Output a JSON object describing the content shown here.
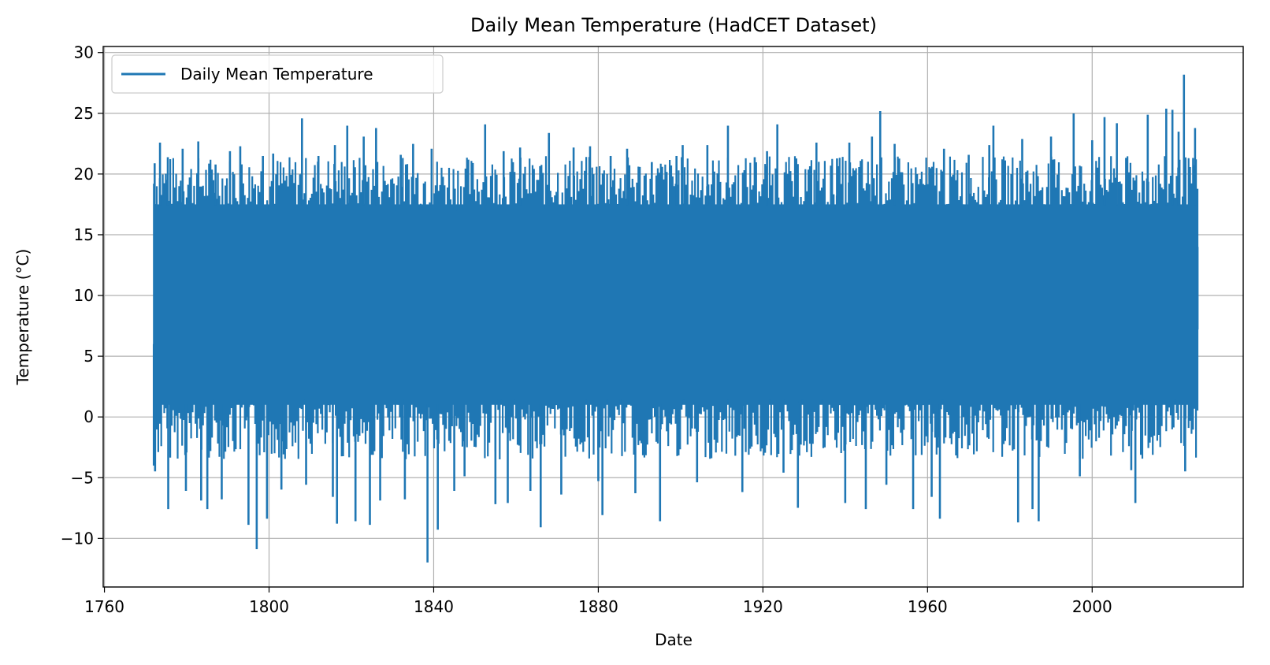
{
  "chart_data": {
    "type": "line",
    "title": "Daily Mean Temperature (HadCET Dataset)",
    "xlabel": "Date",
    "ylabel": "Temperature (°C)",
    "xlim": [
      1759.7,
      2036.7
    ],
    "ylim": [
      -14.0,
      30.5
    ],
    "x_ticks": [
      1760,
      1800,
      1840,
      1880,
      1920,
      1960,
      2000
    ],
    "x_tick_labels": [
      "1760",
      "1800",
      "1840",
      "1880",
      "1920",
      "1960",
      "2000"
    ],
    "y_ticks": [
      -10,
      -5,
      0,
      5,
      10,
      15,
      20,
      25,
      30
    ],
    "y_tick_labels": [
      "−10",
      "−5",
      "0",
      "5",
      "10",
      "15",
      "20",
      "25",
      "30"
    ],
    "grid": true,
    "legend_position": "top-left",
    "series": [
      {
        "name": "Daily Mean Temperature",
        "color": "#1f77b4",
        "x_range": [
          1772.0,
          2025.6
        ],
        "core_range": [
          1.0,
          17.5
        ],
        "points": [
          {
            "x": 1772.2,
            "y": 20.8
          },
          {
            "x": 1772.3,
            "y": -4.4
          },
          {
            "x": 1773.5,
            "y": 22.5
          },
          {
            "x": 1775.4,
            "y": 21.3
          },
          {
            "x": 1775.5,
            "y": -7.5
          },
          {
            "x": 1779.0,
            "y": 22.0
          },
          {
            "x": 1779.8,
            "y": -6.0
          },
          {
            "x": 1782.8,
            "y": 22.6
          },
          {
            "x": 1783.5,
            "y": -6.8
          },
          {
            "x": 1785.0,
            "y": -7.5
          },
          {
            "x": 1787.0,
            "y": 20.7
          },
          {
            "x": 1788.5,
            "y": -6.7
          },
          {
            "x": 1790.5,
            "y": 21.8
          },
          {
            "x": 1793.0,
            "y": 22.2
          },
          {
            "x": 1795.0,
            "y": -8.8
          },
          {
            "x": 1797.0,
            "y": -10.8
          },
          {
            "x": 1798.5,
            "y": 21.4
          },
          {
            "x": 1799.5,
            "y": -8.3
          },
          {
            "x": 1801.0,
            "y": 21.6
          },
          {
            "x": 1803.0,
            "y": -5.9
          },
          {
            "x": 1808.0,
            "y": 24.5
          },
          {
            "x": 1809.0,
            "y": -5.5
          },
          {
            "x": 1812.0,
            "y": 21.4
          },
          {
            "x": 1815.5,
            "y": -6.5
          },
          {
            "x": 1816.0,
            "y": 22.3
          },
          {
            "x": 1816.5,
            "y": -8.7
          },
          {
            "x": 1819.0,
            "y": 23.9
          },
          {
            "x": 1821.0,
            "y": -8.5
          },
          {
            "x": 1823.0,
            "y": 23.0
          },
          {
            "x": 1824.5,
            "y": -8.8
          },
          {
            "x": 1826.0,
            "y": 23.7
          },
          {
            "x": 1827.0,
            "y": -6.8
          },
          {
            "x": 1832.0,
            "y": 21.5
          },
          {
            "x": 1833.0,
            "y": -6.7
          },
          {
            "x": 1835.0,
            "y": 22.4
          },
          {
            "x": 1838.5,
            "y": -11.9
          },
          {
            "x": 1839.5,
            "y": 22.0
          },
          {
            "x": 1841.0,
            "y": -9.2
          },
          {
            "x": 1845.0,
            "y": -6.0
          },
          {
            "x": 1847.5,
            "y": -4.8
          },
          {
            "x": 1852.5,
            "y": 24.0
          },
          {
            "x": 1855.0,
            "y": -7.1
          },
          {
            "x": 1857.0,
            "y": 21.8
          },
          {
            "x": 1858.0,
            "y": -7.0
          },
          {
            "x": 1861.0,
            "y": 22.1
          },
          {
            "x": 1863.5,
            "y": -6.0
          },
          {
            "x": 1866.0,
            "y": -9.0
          },
          {
            "x": 1868.0,
            "y": 23.3
          },
          {
            "x": 1871.0,
            "y": -6.3
          },
          {
            "x": 1874.0,
            "y": 22.1
          },
          {
            "x": 1878.0,
            "y": 22.2
          },
          {
            "x": 1880.0,
            "y": -5.2
          },
          {
            "x": 1881.0,
            "y": -8.0
          },
          {
            "x": 1883.0,
            "y": 21.4
          },
          {
            "x": 1887.0,
            "y": 22.0
          },
          {
            "x": 1889.0,
            "y": -6.2
          },
          {
            "x": 1893.0,
            "y": 20.9
          },
          {
            "x": 1895.0,
            "y": -8.5
          },
          {
            "x": 1899.0,
            "y": 21.4
          },
          {
            "x": 1900.5,
            "y": 22.3
          },
          {
            "x": 1904.0,
            "y": -5.3
          },
          {
            "x": 1906.5,
            "y": 22.3
          },
          {
            "x": 1911.5,
            "y": 23.9
          },
          {
            "x": 1915.0,
            "y": -6.1
          },
          {
            "x": 1918.0,
            "y": 21.3
          },
          {
            "x": 1921.0,
            "y": 21.8
          },
          {
            "x": 1923.5,
            "y": 24.0
          },
          {
            "x": 1925.0,
            "y": -4.5
          },
          {
            "x": 1928.5,
            "y": -7.4
          },
          {
            "x": 1933.0,
            "y": 22.5
          },
          {
            "x": 1938.0,
            "y": 21.2
          },
          {
            "x": 1940.0,
            "y": -7.0
          },
          {
            "x": 1941.0,
            "y": 22.5
          },
          {
            "x": 1945.0,
            "y": -7.5
          },
          {
            "x": 1946.5,
            "y": 23.0
          },
          {
            "x": 1948.5,
            "y": 25.1
          },
          {
            "x": 1950.0,
            "y": -5.5
          },
          {
            "x": 1952.0,
            "y": 22.4
          },
          {
            "x": 1956.5,
            "y": -7.5
          },
          {
            "x": 1961.0,
            "y": -6.5
          },
          {
            "x": 1963.0,
            "y": -8.3
          },
          {
            "x": 1964.0,
            "y": 22.0
          },
          {
            "x": 1970.0,
            "y": 21.5
          },
          {
            "x": 1975.0,
            "y": 22.3
          },
          {
            "x": 1976.0,
            "y": 23.9
          },
          {
            "x": 1982.0,
            "y": -8.6
          },
          {
            "x": 1983.0,
            "y": 22.8
          },
          {
            "x": 1985.5,
            "y": -7.5
          },
          {
            "x": 1987.0,
            "y": -8.5
          },
          {
            "x": 1990.0,
            "y": 23.0
          },
          {
            "x": 1995.5,
            "y": 24.9
          },
          {
            "x": 1997.0,
            "y": -4.8
          },
          {
            "x": 2000.0,
            "y": 22.7
          },
          {
            "x": 2003.0,
            "y": 24.6
          },
          {
            "x": 2006.0,
            "y": 24.1
          },
          {
            "x": 2009.5,
            "y": -4.3
          },
          {
            "x": 2010.5,
            "y": -7.0
          },
          {
            "x": 2013.5,
            "y": 24.8
          },
          {
            "x": 2018.0,
            "y": 25.3
          },
          {
            "x": 2019.5,
            "y": 25.2
          },
          {
            "x": 2021.0,
            "y": 23.4
          },
          {
            "x": 2022.3,
            "y": 28.1
          },
          {
            "x": 2022.6,
            "y": -4.4
          },
          {
            "x": 2025.0,
            "y": 23.7
          }
        ]
      }
    ]
  }
}
